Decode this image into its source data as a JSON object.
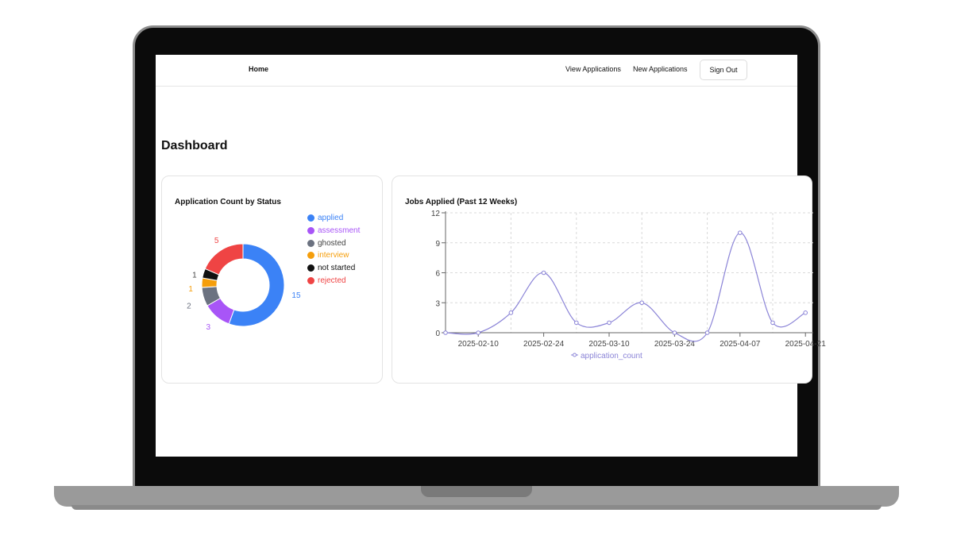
{
  "nav": {
    "home": "Home",
    "view_applications": "View Applications",
    "new_applications": "New Applications",
    "sign_out": "Sign Out"
  },
  "page_title": "Dashboard",
  "status_card": {
    "title": "Application Count by Status"
  },
  "weekly_card": {
    "title": "Jobs Applied (Past 12 Weeks)"
  },
  "chart_data": [
    {
      "type": "pie",
      "title": "Application Count by Status",
      "categories": [
        "applied",
        "assessment",
        "ghosted",
        "interview",
        "not started",
        "rejected"
      ],
      "values": [
        15,
        3,
        2,
        1,
        1,
        5
      ],
      "colors": [
        "#3b82f6",
        "#a855f7",
        "#6b7280",
        "#f59e0b",
        "#111111",
        "#ef4444"
      ],
      "legend": "right"
    },
    {
      "type": "line",
      "title": "Jobs Applied (Past 12 Weeks)",
      "x": [
        "2025-02-10",
        "2025-02-17",
        "2025-02-24",
        "2025-03-03",
        "2025-03-10",
        "2025-03-17",
        "2025-03-24",
        "2025-03-31",
        "2025-04-07",
        "2025-04-14",
        "2025-04-21"
      ],
      "x_ticks": [
        "2025-02-10",
        "2025-02-24",
        "2025-03-10",
        "2025-03-24",
        "2025-04-07",
        "2025-04-21"
      ],
      "series": [
        {
          "name": "application_count",
          "values": [
            0,
            2,
            6,
            1,
            1,
            3,
            0,
            0,
            10,
            1,
            2
          ],
          "color": "#8b84d7"
        }
      ],
      "first_point": 0,
      "ylim": [
        0,
        12
      ],
      "yticks": [
        0,
        3,
        6,
        9,
        12
      ],
      "grid": true,
      "legend": "bottom"
    }
  ]
}
